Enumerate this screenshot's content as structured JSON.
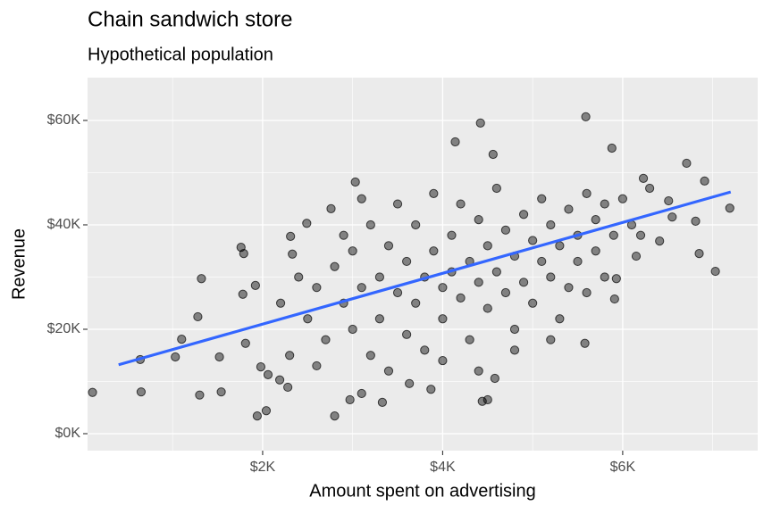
{
  "chart_data": {
    "type": "scatter",
    "title": "Chain sandwich store",
    "subtitle": "Hypothetical population",
    "x_label": "Amount spent on advertising",
    "y_label": "Revenue",
    "xlim": [
      55,
      7500
    ],
    "ylim": [
      -3250,
      68200
    ],
    "xticks": [
      {
        "value": 2000,
        "label": "$2K"
      },
      {
        "value": 4000,
        "label": "$4K"
      },
      {
        "value": 6000,
        "label": "$6K"
      }
    ],
    "yticks": [
      {
        "value": 0,
        "label": "$0K"
      },
      {
        "value": 20000,
        "label": "$20K"
      },
      {
        "value": 40000,
        "label": "$40K"
      },
      {
        "value": 60000,
        "label": "$60K"
      }
    ],
    "minor_xticks": [
      1000,
      3000,
      5000,
      7000
    ],
    "minor_yticks": [
      10000,
      30000,
      50000
    ],
    "grid": true,
    "x": [
      110,
      640,
      650,
      1030,
      1100,
      1280,
      1300,
      1320,
      1520,
      1540,
      1760,
      1790,
      1810,
      1780,
      1920,
      1940,
      2040,
      1980,
      2060,
      2190,
      2280,
      2310,
      2330,
      2490,
      2800,
      2760,
      3030,
      2970,
      3100,
      3330,
      3630,
      3870,
      4140,
      4420,
      4440,
      4500,
      4580,
      4560,
      5590,
      5880,
      5580,
      5930,
      5910,
      6710,
      6910,
      6810,
      6850,
      7030,
      7190,
      6410,
      6150,
      6230,
      6510,
      6550,
      2500,
      2600,
      2700,
      2800,
      2900,
      3000,
      3000,
      3100,
      3200,
      3200,
      3300,
      3300,
      3400,
      3400,
      3500,
      3500,
      3600,
      3600,
      3700,
      3700,
      3800,
      3800,
      3900,
      3900,
      4000,
      4000,
      4100,
      4100,
      4200,
      4200,
      4300,
      4300,
      4400,
      4400,
      4500,
      4500,
      4600,
      4600,
      4700,
      4700,
      4800,
      4800,
      4900,
      4900,
      5000,
      5000,
      5100,
      5100,
      5200,
      5200,
      5300,
      5300,
      5400,
      5400,
      5500,
      5500,
      5600,
      5600,
      5700,
      5700,
      5800,
      5800,
      5900,
      6000,
      6100,
      6200,
      6300,
      2200,
      2300,
      2400,
      2600,
      2900,
      3100,
      4000,
      4400,
      4800,
      5200
    ],
    "series": [
      {
        "color": "#000000",
        "values": [
          7900,
          14200,
          8000,
          14700,
          18100,
          22400,
          7400,
          29700,
          14700,
          8000,
          35700,
          34500,
          17300,
          26700,
          28400,
          3400,
          4400,
          12800,
          11300,
          10300,
          8900,
          37800,
          34400,
          40300,
          3400,
          43100,
          48200,
          6500,
          7700,
          6000,
          9600,
          8500,
          55900,
          59500,
          6200,
          6500,
          10600,
          53500,
          60700,
          54700,
          17300,
          29700,
          25800,
          51800,
          48400,
          40700,
          34500,
          31100,
          43200,
          36900,
          34000,
          48900,
          44600,
          41500,
          22000,
          28000,
          18000,
          32000,
          25000,
          20000,
          35000,
          28000,
          15000,
          40000,
          30000,
          22000,
          36000,
          12000,
          27000,
          44000,
          33000,
          19000,
          25000,
          40000,
          30000,
          16000,
          35000,
          46000,
          28000,
          22000,
          38000,
          31000,
          26000,
          44000,
          33000,
          18000,
          29000,
          41000,
          36000,
          24000,
          31000,
          47000,
          27000,
          39000,
          34000,
          20000,
          42000,
          29000,
          37000,
          25000,
          33000,
          45000,
          30000,
          40000,
          36000,
          22000,
          43000,
          28000,
          38000,
          33000,
          46000,
          27000,
          41000,
          35000,
          30000,
          44000,
          38000,
          45000,
          40000,
          38000,
          47000,
          25000,
          15000,
          30000,
          13000,
          38000,
          45000,
          14000,
          12000,
          16000,
          18000
        ]
      }
    ],
    "trend": {
      "color": "#3366ff",
      "x": [
        400,
        7200
      ],
      "values": [
        13200,
        46300
      ]
    }
  }
}
